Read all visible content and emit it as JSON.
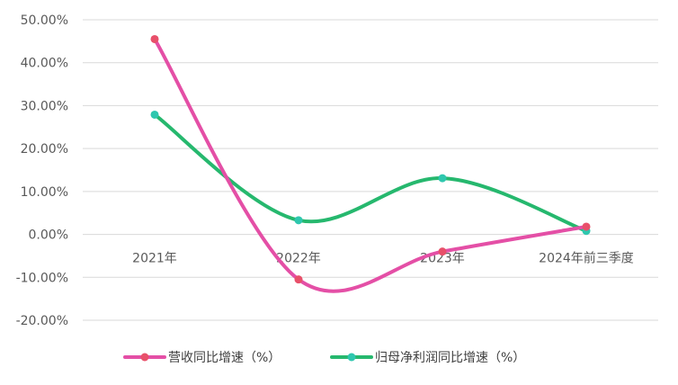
{
  "chart_data": {
    "type": "line",
    "categories": [
      "2021年",
      "2022年",
      "2023年",
      "2024年前三季度"
    ],
    "series": [
      {
        "name": "营收同比增速（%）",
        "values": [
          45.5,
          -10.5,
          -4.0,
          1.8
        ],
        "color": "#E8506A",
        "line_color": "#E44FA6"
      },
      {
        "name": "归母净利润同比增速（%）",
        "values": [
          27.9,
          3.3,
          13.1,
          0.8
        ],
        "color": "#2EC7AE",
        "line_color": "#26B86E"
      }
    ],
    "ylim": [
      -20,
      50
    ],
    "yticks": [
      -20,
      -10,
      0,
      10,
      20,
      30,
      40,
      50
    ],
    "ytick_labels": [
      "-20.00%",
      "-10.00%",
      "0.00%",
      "10.00%",
      "20.00%",
      "30.00%",
      "40.00%",
      "50.00%"
    ],
    "grid": true,
    "smooth": true,
    "legend_position": "bottom"
  }
}
